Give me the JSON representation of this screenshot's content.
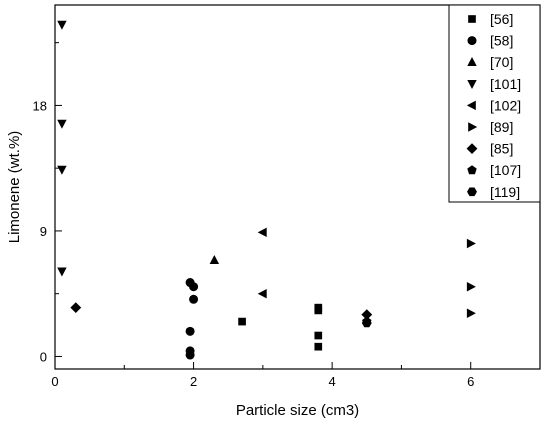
{
  "chart_data": {
    "type": "scatter",
    "title": "",
    "xlabel": "Particle size (cm3)",
    "ylabel": "Limonene (wt.%)",
    "xlim": [
      0,
      7
    ],
    "ylim": [
      -0.9,
      25.2
    ],
    "x_ticks": [
      0,
      2,
      4,
      6
    ],
    "y_ticks": [
      0,
      9,
      18
    ],
    "grid": false,
    "legend_position": "top-right",
    "series": [
      {
        "name": "[56]",
        "marker": "square",
        "x": [
          2.7,
          3.8,
          3.8,
          3.8,
          3.8
        ],
        "y": [
          2.5,
          3.5,
          3.3,
          1.5,
          0.7
        ]
      },
      {
        "name": "[58]",
        "marker": "circle",
        "x": [
          1.95,
          2.0,
          2.0,
          1.95,
          1.95,
          1.95
        ],
        "y": [
          5.3,
          5.0,
          4.1,
          1.8,
          0.4,
          0.1
        ]
      },
      {
        "name": "[70]",
        "marker": "triangle-up",
        "x": [
          2.3
        ],
        "y": [
          6.9
        ]
      },
      {
        "name": "[101]",
        "marker": "triangle-down",
        "x": [
          0.1,
          0.1,
          0.1,
          0.1
        ],
        "y": [
          23.8,
          16.7,
          13.4,
          6.1
        ]
      },
      {
        "name": "[102]",
        "marker": "triangle-left",
        "x": [
          3.0,
          3.0
        ],
        "y": [
          8.9,
          4.5
        ]
      },
      {
        "name": "[89]",
        "marker": "triangle-right",
        "x": [
          6.0,
          6.0,
          6.0
        ],
        "y": [
          8.1,
          5.0,
          3.1
        ]
      },
      {
        "name": "[85]",
        "marker": "diamond",
        "x": [
          0.3,
          4.5
        ],
        "y": [
          3.5,
          3.0
        ]
      },
      {
        "name": "[107]",
        "marker": "pentagon",
        "x": [
          4.5
        ],
        "y": [
          2.5
        ]
      },
      {
        "name": "[119]",
        "marker": "hexagon",
        "x": [
          4.5
        ],
        "y": [
          2.4
        ]
      }
    ]
  },
  "colors": {
    "marker": "#000000",
    "axis": "#000000",
    "background": "#ffffff"
  }
}
